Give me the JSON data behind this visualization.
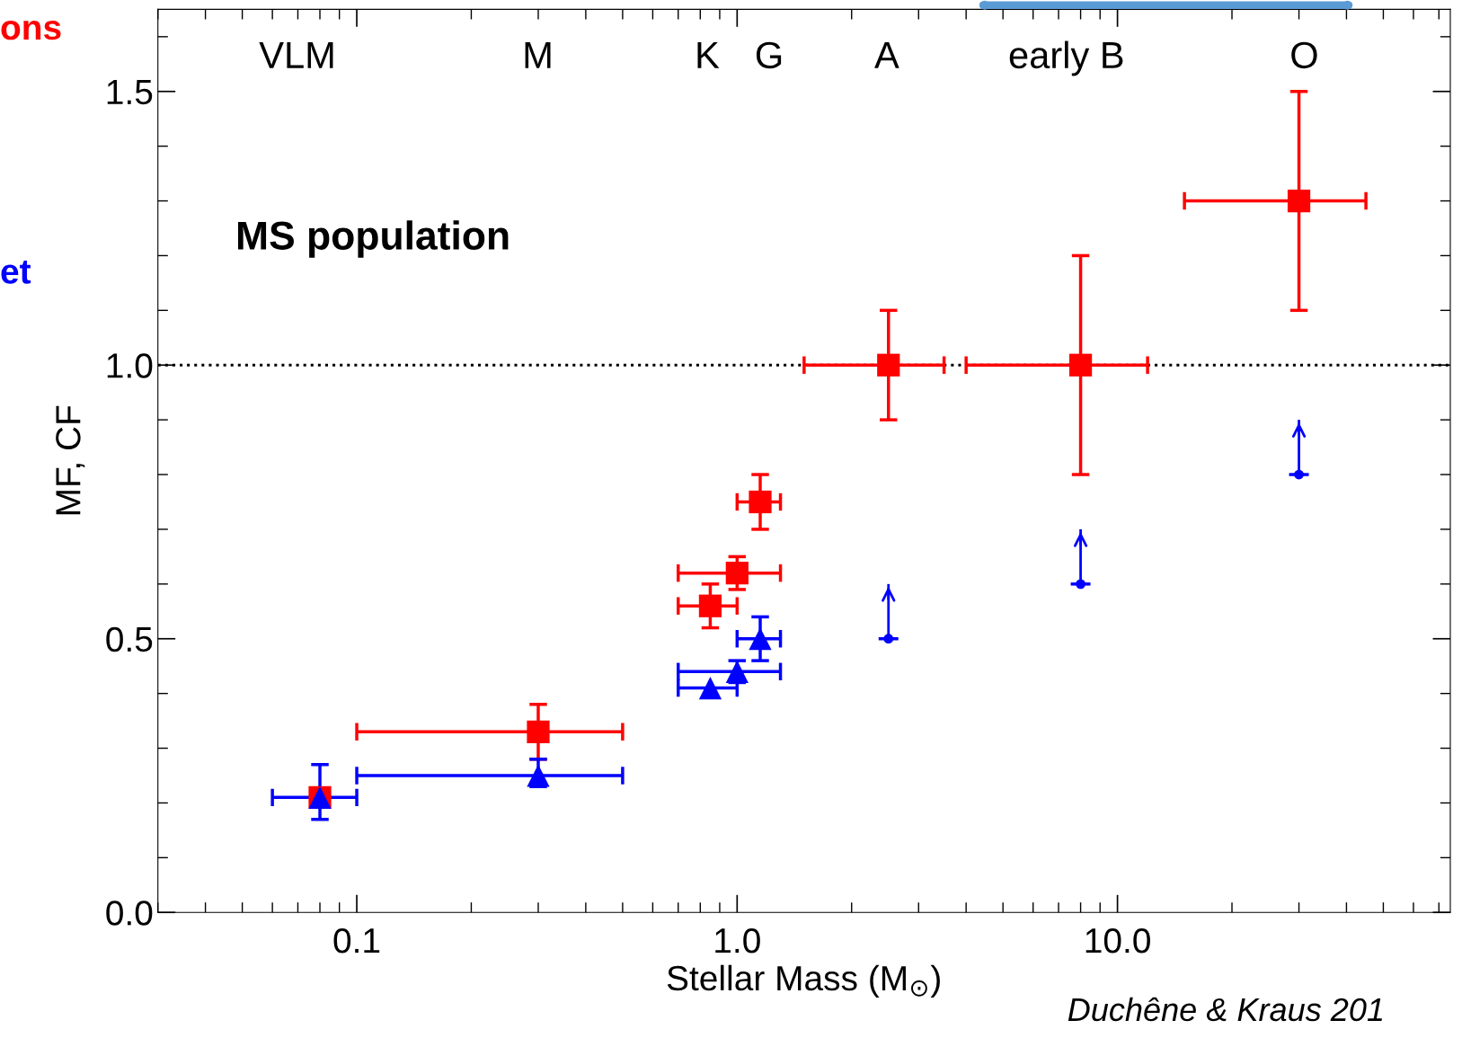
{
  "chart_data": {
    "type": "scatter",
    "xlabel": "Stellar Mass (M$_{⊙}$)",
    "ylabel": "MF, CF",
    "log": "x",
    "xlim": [
      0.03,
      75
    ],
    "xticks": [
      {
        "value": 0.1,
        "label": "0.1"
      },
      {
        "value": 1,
        "label": "1.0"
      },
      {
        "value": 10,
        "label": "10.0"
      }
    ],
    "ylim": [
      0,
      1.65
    ],
    "yticks": [
      {
        "value": 0,
        "label": "0.0"
      },
      0.5,
      {
        "value": 1,
        "label": "1.0"
      },
      1.5
    ],
    "grid": false,
    "series": [
      {
        "color": "#ff0000",
        "marker": "square",
        "x": [
          0.08,
          0.3,
          0.85,
          1.0,
          1.15,
          2.5,
          8,
          30
        ],
        "values": [
          0.21,
          0.33,
          0.56,
          0.62,
          0.75,
          1.0,
          1.0,
          1.3
        ],
        "errors": [
          null,
          [
            0.28,
            0.38
          ],
          [
            0.52,
            0.6
          ],
          [
            0.59,
            0.65
          ],
          [
            0.7,
            0.8
          ],
          [
            0.9,
            1.1
          ],
          [
            0.8,
            1.2
          ],
          [
            1.1,
            1.5
          ]
        ],
        "xerrors": [
          null,
          [
            0.1,
            0.5
          ],
          [
            0.7,
            1.0
          ],
          [
            0.7,
            1.3
          ],
          [
            1.0,
            1.3
          ],
          [
            1.5,
            3.5
          ],
          [
            4,
            12
          ],
          [
            15,
            45
          ]
        ]
      },
      {
        "color": "#0000ff",
        "marker": "triangle",
        "x": [
          0.08,
          0.3,
          0.85,
          1.0,
          1.15
        ],
        "values": [
          0.21,
          0.25,
          0.41,
          0.44,
          0.5
        ],
        "errors": [
          [
            0.17,
            0.27
          ],
          [
            0.23,
            0.28
          ],
          null,
          [
            0.42,
            0.46
          ],
          [
            0.46,
            0.54
          ]
        ],
        "xerrors": [
          [
            0.06,
            0.1
          ],
          [
            0.1,
            0.5
          ],
          [
            0.7,
            1.0
          ],
          [
            0.7,
            1.3
          ],
          [
            1.0,
            1.3
          ]
        ]
      },
      {
        "color": "#0000ff",
        "marker": "circle",
        "x": [
          2.5,
          8,
          30
        ],
        "values": [
          0.5,
          0.6,
          0.8
        ],
        "errors": [
          [
            0.5,
            0.6
          ],
          [
            0.6,
            0.7
          ],
          [
            0.8,
            0.9
          ]
        ]
      }
    ],
    "ref_lines": [
      {
        "axis": "y",
        "value": 1.0,
        "color": "#000000",
        "line_style": "dotted"
      }
    ],
    "annotations": [
      "VLM",
      "M",
      "K",
      "G",
      "A",
      "early B",
      "O",
      "MS population",
      "ons",
      "et",
      "Duchêne & Kraus 201"
    ]
  }
}
